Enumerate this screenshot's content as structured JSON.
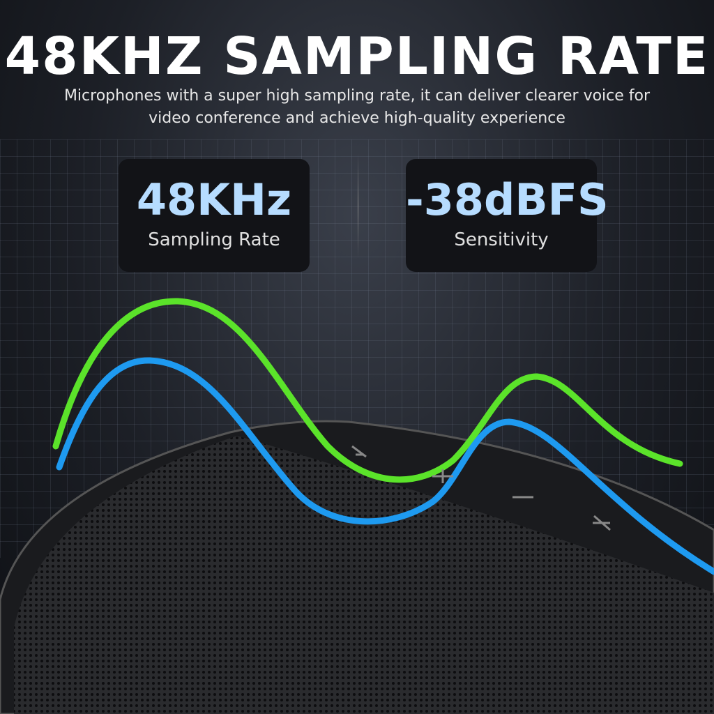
{
  "headline": "48KHZ SAMPLING RATE",
  "subtitle_line1": "Microphones with a super high sampling rate, it can deliver clearer voice for",
  "subtitle_line2": "video conference and achieve high-quality experience",
  "specs": [
    {
      "value": "48KHz",
      "label": "Sampling Rate"
    },
    {
      "value": "-38dBFS",
      "label": "Sensitivity"
    }
  ],
  "colors": {
    "green_wave": "#5be32a",
    "blue_wave": "#1e9af0",
    "spec_value": "#b6dcff"
  },
  "device_icons": [
    "mute-icon",
    "volume-up-icon",
    "volume-down-icon",
    "call-end-icon"
  ]
}
